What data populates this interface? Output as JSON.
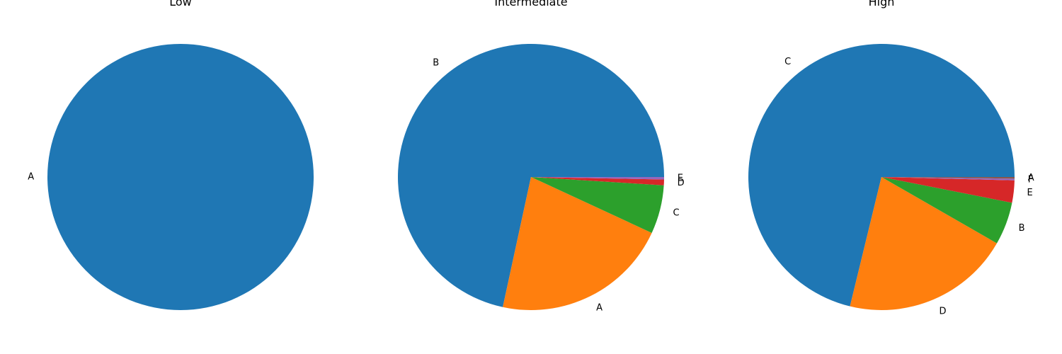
{
  "chart_data": [
    {
      "type": "pie",
      "title": "Low",
      "start_angle_deg": 0,
      "direction": "counterclockwise",
      "slices": [
        {
          "label": "A",
          "value": 100.0,
          "color": "#1f77b4"
        }
      ]
    },
    {
      "type": "pie",
      "title": "Intermediate",
      "start_angle_deg": 0,
      "direction": "counterclockwise",
      "slices": [
        {
          "label": "B",
          "value": 71.6,
          "color": "#1f77b4"
        },
        {
          "label": "A",
          "value": 21.5,
          "color": "#ff7f0e"
        },
        {
          "label": "C",
          "value": 5.9,
          "color": "#2ca02c"
        },
        {
          "label": "D",
          "value": 0.7,
          "color": "#d62728"
        },
        {
          "label": "E",
          "value": 0.3,
          "color": "#9467bd"
        }
      ]
    },
    {
      "type": "pie",
      "title": "High",
      "start_angle_deg": 0,
      "direction": "counterclockwise",
      "slices": [
        {
          "label": "C",
          "value": 71.2,
          "color": "#1f77b4"
        },
        {
          "label": "D",
          "value": 20.5,
          "color": "#ff7f0e"
        },
        {
          "label": "B",
          "value": 5.2,
          "color": "#2ca02c"
        },
        {
          "label": "E",
          "value": 2.7,
          "color": "#d62728"
        },
        {
          "label": "F",
          "value": 0.2,
          "color": "#9467bd"
        },
        {
          "label": "A",
          "value": 0.2,
          "color": "#8c564b"
        }
      ]
    }
  ]
}
